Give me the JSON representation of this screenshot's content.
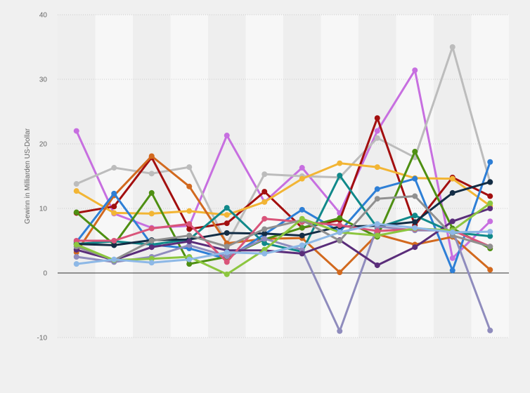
{
  "chart_data": {
    "type": "line",
    "title": "",
    "xlabel": "",
    "ylabel": "Gewinn in Milliarden US-Dollar",
    "ylim": [
      -10,
      40
    ],
    "yticks": [
      -10,
      0,
      10,
      20,
      30,
      40
    ],
    "ytick_labels": [
      "-10",
      "0",
      "10",
      "20",
      "30",
      "40"
    ],
    "x": [
      1,
      2,
      3,
      4,
      5,
      6,
      7,
      8,
      9,
      10,
      11,
      12
    ],
    "grid": "horizontal dotted lines, alternating vertical column bands",
    "legend": "none",
    "series": [
      {
        "color": "#c76fe0",
        "values": [
          22.0,
          9.2,
          7.0,
          7.3,
          21.3,
          11.0,
          16.3,
          9.3,
          22.0,
          31.4,
          2.3,
          8.0
        ]
      },
      {
        "color": "#bcbcbc",
        "values": [
          13.8,
          16.3,
          15.4,
          16.4,
          4.5,
          15.3,
          15.0,
          14.8,
          20.9,
          17.9,
          35.0,
          14.0
        ]
      },
      {
        "color": "#a30f0f",
        "values": [
          9.3,
          10.3,
          17.9,
          6.8,
          7.7,
          12.6,
          7.0,
          8.2,
          24.0,
          7.4,
          14.8,
          11.9
        ]
      },
      {
        "color": "#f2b534",
        "values": [
          12.7,
          9.3,
          9.2,
          9.6,
          9.0,
          11.0,
          14.6,
          17.0,
          16.4,
          14.7,
          14.6,
          10.4
        ]
      },
      {
        "color": "#d2691e",
        "values": [
          3.2,
          12.0,
          18.1,
          13.4,
          4.6,
          5.3,
          5.4,
          0.1,
          6.0,
          4.4,
          5.6,
          0.5
        ]
      },
      {
        "color": "#2e7fd6",
        "values": [
          4.8,
          12.3,
          4.4,
          3.8,
          2.2,
          6.0,
          9.8,
          6.4,
          13.0,
          14.6,
          0.4,
          17.2
        ]
      },
      {
        "color": "#4e8f12",
        "values": [
          9.4,
          4.4,
          12.4,
          1.4,
          2.5,
          5.2,
          7.0,
          8.5,
          5.6,
          18.8,
          6.9,
          3.8
        ]
      },
      {
        "color": "#11898a",
        "values": [
          4.5,
          4.9,
          4.4,
          5.2,
          10.1,
          4.6,
          3.3,
          15.1,
          7.0,
          8.9,
          6.3,
          5.7
        ]
      },
      {
        "color": "#132d45",
        "values": [
          4.5,
          4.3,
          5.1,
          5.2,
          6.2,
          6.1,
          5.8,
          7.2,
          7.3,
          7.9,
          12.4,
          14.1
        ]
      },
      {
        "color": "#8f8cbd",
        "values": [
          2.5,
          1.7,
          2.5,
          4.3,
          2.6,
          5.3,
          3.6,
          -9.0,
          7.2,
          6.6,
          6.6,
          -8.9
        ]
      },
      {
        "color": "#5a2d7a",
        "values": [
          3.6,
          2.0,
          4.0,
          4.9,
          3.5,
          3.5,
          3.0,
          5.1,
          1.2,
          4.0,
          8.0,
          10.0
        ]
      },
      {
        "color": "#d9547a",
        "values": [
          5.0,
          5.0,
          6.9,
          7.6,
          1.7,
          8.4,
          7.9,
          7.4,
          6.5,
          6.8,
          6.6,
          4.1
        ]
      },
      {
        "color": "#909090",
        "values": [
          4.1,
          2.0,
          5.0,
          5.8,
          4.1,
          6.8,
          8.2,
          5.0,
          11.5,
          11.9,
          5.8,
          4.1
        ]
      },
      {
        "color": "#8cc63f",
        "values": [
          4.4,
          2.0,
          2.2,
          2.5,
          -0.2,
          3.6,
          8.4,
          6.3,
          5.8,
          6.9,
          6.6,
          10.8
        ]
      },
      {
        "color": "#8db8e6",
        "values": [
          1.4,
          2.1,
          1.6,
          2.1,
          3.2,
          3.0,
          4.3,
          6.3,
          7.6,
          7.0,
          6.3,
          6.4
        ]
      }
    ]
  }
}
